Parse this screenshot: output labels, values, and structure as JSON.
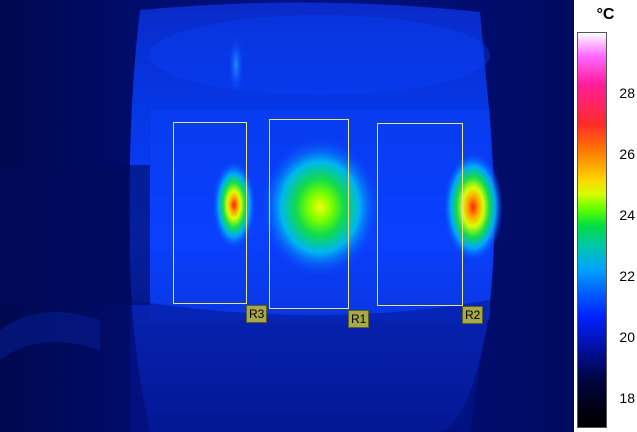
{
  "scale": {
    "unit": "°C",
    "ticks": [
      "28",
      "26",
      "24",
      "22",
      "20",
      "18"
    ]
  },
  "rois": [
    {
      "id": "R3",
      "label": "R3"
    },
    {
      "id": "R1",
      "label": "R1"
    },
    {
      "id": "R2",
      "label": "R2"
    }
  ],
  "colors": {
    "roi_outline": "#e7e67a",
    "roi_tag_bg": "#a8a84a",
    "background_cold": "#000a6e",
    "hotspot_peak": "#ff2200"
  }
}
